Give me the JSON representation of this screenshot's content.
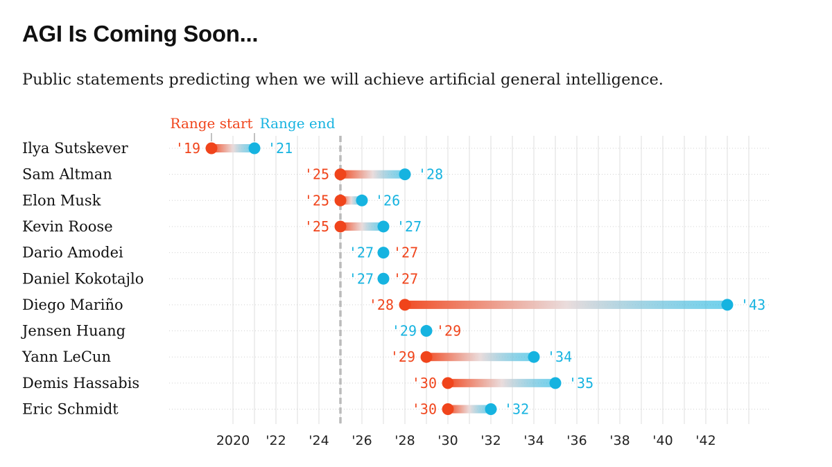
{
  "title": "AGI Is Coming Soon...",
  "subtitle": "Public statements predicting when we will achieve artificial general intelligence.",
  "colors": {
    "start": "#f0441b",
    "end": "#16b3e0",
    "grid": "#e3e3e3",
    "row_line": "#d0d0d0",
    "current_year_line": "#bbbbbb"
  },
  "chart_data": {
    "type": "dumbbell",
    "title": "AGI Is Coming Soon...",
    "legend": {
      "start": "Range start",
      "end": "Range end"
    },
    "xlim": [
      2017,
      2045
    ],
    "current_year_marker": 2025,
    "ticks": [
      {
        "value": 2020,
        "label": "2020"
      },
      {
        "value": 2022,
        "label": "'22"
      },
      {
        "value": 2024,
        "label": "'24"
      },
      {
        "value": 2026,
        "label": "'26"
      },
      {
        "value": 2028,
        "label": "'28"
      },
      {
        "value": 2030,
        "label": "'30"
      },
      {
        "value": 2032,
        "label": "'32"
      },
      {
        "value": 2034,
        "label": "'34"
      },
      {
        "value": 2036,
        "label": "'36"
      },
      {
        "value": 2038,
        "label": "'38"
      },
      {
        "value": 2040,
        "label": "'40"
      },
      {
        "value": 2042,
        "label": "'42"
      }
    ],
    "rows": [
      {
        "name": "Ilya Sutskever",
        "start": 2019,
        "end": 2021,
        "start_label": "'19",
        "end_label": "'21"
      },
      {
        "name": "Sam Altman",
        "start": 2025,
        "end": 2028,
        "start_label": "'25",
        "end_label": "'28"
      },
      {
        "name": "Elon Musk",
        "start": 2025,
        "end": 2026,
        "start_label": "'25",
        "end_label": "'26"
      },
      {
        "name": "Kevin Roose",
        "start": 2025,
        "end": 2027,
        "start_label": "'25",
        "end_label": "'27"
      },
      {
        "name": "Dario Amodei",
        "start": 2027,
        "end": 2027,
        "start_label": "'27",
        "end_label": "'27"
      },
      {
        "name": "Daniel Kokotajlo",
        "start": 2027,
        "end": 2027,
        "start_label": "'27",
        "end_label": "'27"
      },
      {
        "name": "Diego Mariño",
        "start": 2028,
        "end": 2043,
        "start_label": "'28",
        "end_label": "'43"
      },
      {
        "name": "Jensen Huang",
        "start": 2029,
        "end": 2029,
        "start_label": "'29",
        "end_label": "'29"
      },
      {
        "name": "Yann LeCun",
        "start": 2029,
        "end": 2034,
        "start_label": "'29",
        "end_label": "'34"
      },
      {
        "name": "Demis Hassabis",
        "start": 2030,
        "end": 2035,
        "start_label": "'30",
        "end_label": "'35"
      },
      {
        "name": "Eric Schmidt",
        "start": 2030,
        "end": 2032,
        "start_label": "'30",
        "end_label": "'32"
      }
    ]
  }
}
